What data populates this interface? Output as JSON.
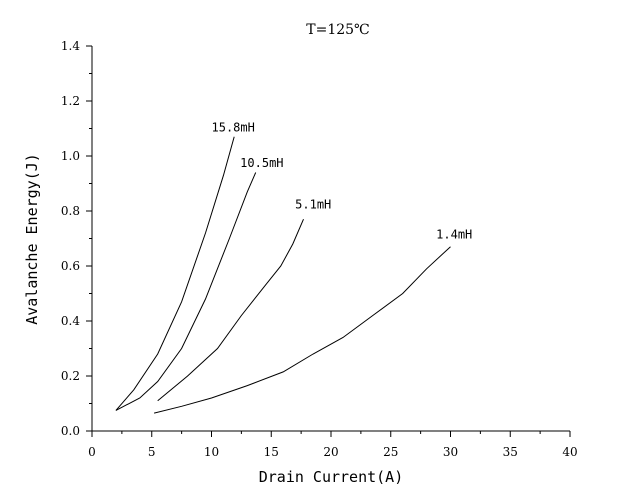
{
  "chart_data": {
    "type": "line",
    "title": "T=125℃",
    "xlabel": "Drain Current(A)",
    "ylabel": "Avalanche Energy(J)",
    "xlim": [
      0,
      40
    ],
    "ylim": [
      0,
      1.4
    ],
    "xticks": [
      0,
      5,
      10,
      15,
      20,
      25,
      30,
      35,
      40
    ],
    "yticks": [
      0.0,
      0.2,
      0.4,
      0.6,
      0.8,
      1.0,
      1.2,
      1.4
    ],
    "xtick_labels": [
      "0",
      "5",
      "10",
      "15",
      "20",
      "25",
      "30",
      "35",
      "40"
    ],
    "ytick_labels": [
      "0.0",
      "0.2",
      "0.4",
      "0.6",
      "0.8",
      "1.0",
      "1.2",
      "1.4"
    ],
    "grid": false,
    "series": [
      {
        "name": "15.8mH",
        "points": [
          [
            2.0,
            0.075
          ],
          [
            3.5,
            0.15
          ],
          [
            5.5,
            0.28
          ],
          [
            7.5,
            0.47
          ],
          [
            9.5,
            0.72
          ],
          [
            11.0,
            0.93
          ],
          [
            11.9,
            1.07
          ]
        ]
      },
      {
        "name": "10.5mH",
        "points": [
          [
            2.0,
            0.075
          ],
          [
            4.0,
            0.12
          ],
          [
            5.5,
            0.18
          ],
          [
            7.5,
            0.3
          ],
          [
            9.5,
            0.48
          ],
          [
            11.5,
            0.7
          ],
          [
            13.0,
            0.87
          ],
          [
            13.7,
            0.94
          ]
        ]
      },
      {
        "name": "5.1mH",
        "points": [
          [
            5.5,
            0.11
          ],
          [
            8.0,
            0.2
          ],
          [
            10.5,
            0.3
          ],
          [
            12.5,
            0.42
          ],
          [
            14.5,
            0.53
          ],
          [
            15.8,
            0.6
          ],
          [
            16.8,
            0.68
          ],
          [
            17.7,
            0.77
          ]
        ]
      },
      {
        "name": "1.4mH",
        "points": [
          [
            5.2,
            0.065
          ],
          [
            7.5,
            0.09
          ],
          [
            10.0,
            0.12
          ],
          [
            13.0,
            0.165
          ],
          [
            16.0,
            0.215
          ],
          [
            18.5,
            0.28
          ],
          [
            21.0,
            0.34
          ],
          [
            23.5,
            0.42
          ],
          [
            26.0,
            0.5
          ],
          [
            28.0,
            0.59
          ],
          [
            30.0,
            0.67
          ]
        ]
      }
    ],
    "annotations": [
      {
        "text": "15.8mH",
        "x": 10.0,
        "y": 1.09
      },
      {
        "text": "10.5mH",
        "x": 12.4,
        "y": 0.96
      },
      {
        "text": "5.1mH",
        "x": 17.0,
        "y": 0.81
      },
      {
        "text": "1.4mH",
        "x": 28.8,
        "y": 0.7
      }
    ]
  }
}
